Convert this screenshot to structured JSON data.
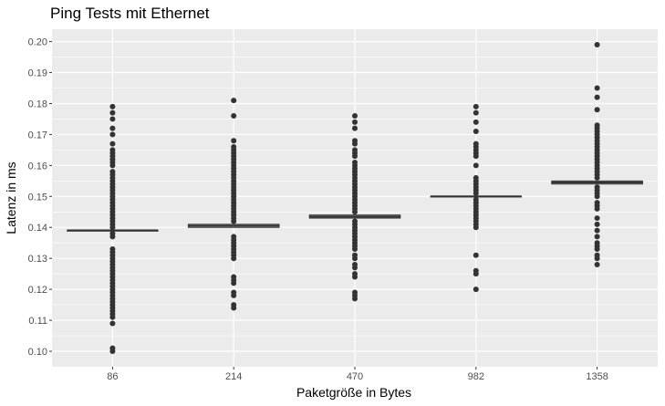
{
  "chart_data": {
    "type": "boxplot",
    "title": "Ping Tests mit Ethernet",
    "xlabel": "Paketgröße in Bytes",
    "ylabel": "Latenz in ms",
    "categories": [
      "86",
      "214",
      "470",
      "982",
      "1358"
    ],
    "ylim": [
      0.095,
      0.204
    ],
    "yticks": [
      0.1,
      0.11,
      0.12,
      0.13,
      0.14,
      0.15,
      0.16,
      0.17,
      0.18,
      0.19,
      0.2
    ],
    "ytick_labels": [
      "0.10",
      "0.11",
      "0.12",
      "0.13",
      "0.14",
      "0.15",
      "0.16",
      "0.17",
      "0.18",
      "0.19",
      "0.20"
    ],
    "grid": true,
    "boxes": [
      {
        "category": "86",
        "q1": 0.139,
        "median": 0.139,
        "q3": 0.139,
        "whisker_low": 0.139,
        "whisker_high": 0.139,
        "outliers": [
          0.179,
          0.177,
          0.175,
          0.172,
          0.17,
          0.167,
          0.165,
          0.164,
          0.163,
          0.162,
          0.161,
          0.16,
          0.158,
          0.157,
          0.156,
          0.155,
          0.154,
          0.153,
          0.152,
          0.151,
          0.15,
          0.149,
          0.148,
          0.147,
          0.146,
          0.145,
          0.144,
          0.143,
          0.142,
          0.141,
          0.14,
          0.138,
          0.137,
          0.133,
          0.132,
          0.131,
          0.13,
          0.129,
          0.128,
          0.127,
          0.126,
          0.125,
          0.124,
          0.123,
          0.122,
          0.121,
          0.12,
          0.119,
          0.118,
          0.117,
          0.116,
          0.115,
          0.114,
          0.113,
          0.112,
          0.111,
          0.109,
          0.101,
          0.1
        ]
      },
      {
        "category": "214",
        "q1": 0.14,
        "median": 0.1405,
        "q3": 0.141,
        "whisker_low": 0.14,
        "whisker_high": 0.141,
        "outliers": [
          0.181,
          0.176,
          0.168,
          0.166,
          0.165,
          0.164,
          0.163,
          0.162,
          0.161,
          0.16,
          0.159,
          0.158,
          0.157,
          0.156,
          0.155,
          0.154,
          0.153,
          0.152,
          0.151,
          0.15,
          0.149,
          0.148,
          0.147,
          0.146,
          0.145,
          0.144,
          0.143,
          0.142,
          0.137,
          0.136,
          0.135,
          0.134,
          0.133,
          0.132,
          0.131,
          0.13,
          0.124,
          0.123,
          0.122,
          0.119,
          0.118,
          0.115,
          0.114
        ]
      },
      {
        "category": "470",
        "q1": 0.143,
        "median": 0.1435,
        "q3": 0.144,
        "whisker_low": 0.143,
        "whisker_high": 0.144,
        "outliers": [
          0.176,
          0.174,
          0.172,
          0.168,
          0.167,
          0.165,
          0.164,
          0.163,
          0.161,
          0.16,
          0.159,
          0.158,
          0.157,
          0.156,
          0.155,
          0.154,
          0.153,
          0.152,
          0.151,
          0.15,
          0.149,
          0.148,
          0.147,
          0.146,
          0.145,
          0.142,
          0.141,
          0.14,
          0.139,
          0.138,
          0.137,
          0.136,
          0.135,
          0.134,
          0.133,
          0.131,
          0.13,
          0.128,
          0.127,
          0.125,
          0.124,
          0.119,
          0.118,
          0.117
        ]
      },
      {
        "category": "982",
        "q1": 0.15,
        "median": 0.15,
        "q3": 0.15,
        "whisker_low": 0.15,
        "whisker_high": 0.15,
        "outliers": [
          0.179,
          0.177,
          0.174,
          0.171,
          0.167,
          0.166,
          0.165,
          0.164,
          0.163,
          0.16,
          0.156,
          0.155,
          0.154,
          0.153,
          0.152,
          0.151,
          0.149,
          0.148,
          0.147,
          0.146,
          0.145,
          0.144,
          0.143,
          0.142,
          0.141,
          0.14,
          0.131,
          0.126,
          0.125,
          0.12
        ]
      },
      {
        "category": "1358",
        "q1": 0.154,
        "median": 0.1545,
        "q3": 0.155,
        "whisker_low": 0.154,
        "whisker_high": 0.155,
        "outliers": [
          0.199,
          0.185,
          0.182,
          0.178,
          0.173,
          0.172,
          0.171,
          0.17,
          0.169,
          0.168,
          0.167,
          0.166,
          0.165,
          0.164,
          0.163,
          0.162,
          0.161,
          0.16,
          0.159,
          0.158,
          0.157,
          0.156,
          0.153,
          0.152,
          0.151,
          0.15,
          0.148,
          0.147,
          0.146,
          0.143,
          0.141,
          0.139,
          0.137,
          0.135,
          0.134,
          0.133,
          0.131,
          0.13,
          0.128
        ]
      }
    ],
    "colors": {
      "panel_background": "#ebebeb",
      "grid_major": "#ffffff",
      "box_fill": "#ffffff",
      "box_stroke": "#333333",
      "point": "#333333"
    }
  }
}
